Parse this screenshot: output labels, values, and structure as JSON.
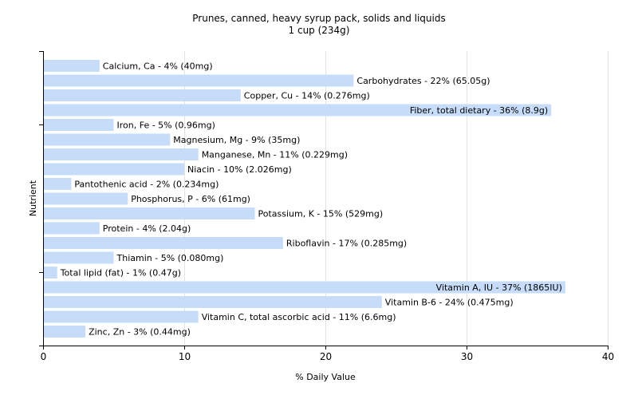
{
  "chart_data": {
    "type": "bar",
    "orientation": "horizontal",
    "title": "Prunes, canned, heavy syrup pack, solids and liquids",
    "subtitle": "1 cup (234g)",
    "xlabel": "% Daily Value",
    "ylabel": "Nutrient",
    "xlim": [
      0,
      40
    ],
    "xticks": [
      0,
      10,
      20,
      30,
      40
    ],
    "grid": true,
    "legend": "none",
    "bar_color": "#c6dcf9",
    "categories": [
      "Calcium, Ca",
      "Carbohydrates",
      "Copper, Cu",
      "Fiber, total dietary",
      "Iron, Fe",
      "Magnesium, Mg",
      "Manganese, Mn",
      "Niacin",
      "Pantothenic acid",
      "Phosphorus, P",
      "Potassium, K",
      "Protein",
      "Riboflavin",
      "Thiamin",
      "Total lipid (fat)",
      "Vitamin A, IU",
      "Vitamin B-6",
      "Vitamin C, total ascorbic acid",
      "Zinc, Zn"
    ],
    "values": [
      4,
      22,
      14,
      36,
      5,
      9,
      11,
      10,
      2,
      6,
      15,
      4,
      17,
      5,
      1,
      37,
      24,
      11,
      3
    ],
    "labels": [
      "Calcium, Ca - 4% (40mg)",
      "Carbohydrates - 22% (65.05g)",
      "Copper, Cu - 14% (0.276mg)",
      "Fiber, total dietary - 36% (8.9g)",
      "Iron, Fe - 5% (0.96mg)",
      "Magnesium, Mg - 9% (35mg)",
      "Manganese, Mn - 11% (0.229mg)",
      "Niacin - 10% (2.026mg)",
      "Pantothenic acid - 2% (0.234mg)",
      "Phosphorus, P - 6% (61mg)",
      "Potassium, K - 15% (529mg)",
      "Protein - 4% (2.04g)",
      "Riboflavin - 17% (0.285mg)",
      "Thiamin - 5% (0.080mg)",
      "Total lipid (fat) - 1% (0.47g)",
      "Vitamin A, IU - 37% (1865IU)",
      "Vitamin B-6 - 24% (0.475mg)",
      "Vitamin C, total ascorbic acid - 11% (6.6mg)",
      "Zinc, Zn - 3% (0.44mg)"
    ]
  }
}
